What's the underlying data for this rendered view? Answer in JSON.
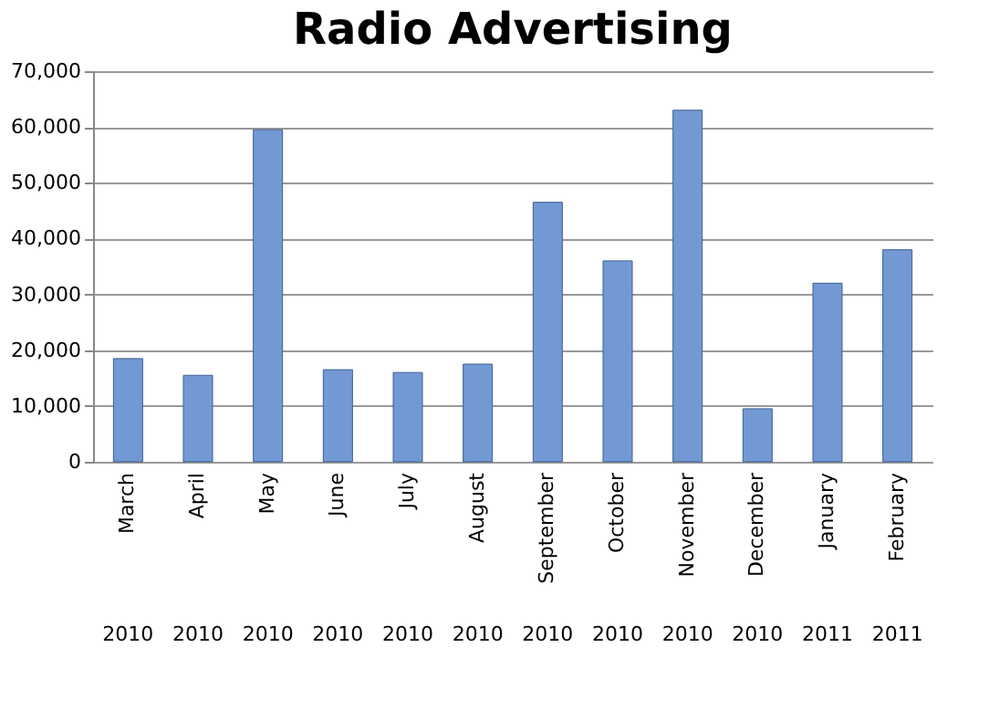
{
  "chart_data": {
    "type": "bar",
    "title": "Radio Advertising",
    "categories": [
      "March 2010",
      "April 2010",
      "May 2010",
      "June 2010",
      "July 2010",
      "August 2010",
      "September 2010",
      "October 2010",
      "November 2010",
      "December 2010",
      "January 2011",
      "February 2011"
    ],
    "values": [
      18500,
      15500,
      59500,
      16500,
      16000,
      17500,
      46500,
      36000,
      63000,
      9500,
      32000,
      38000
    ],
    "color": "#7399d4",
    "ylim": [
      0,
      70000
    ],
    "yticks": [
      {
        "value": 0,
        "label": "0"
      },
      {
        "value": 10000,
        "label": "10,000"
      },
      {
        "value": 20000,
        "label": "20,000"
      },
      {
        "value": 30000,
        "label": "30,000"
      },
      {
        "value": 40000,
        "label": "40,000"
      },
      {
        "value": 50000,
        "label": "50,000"
      },
      {
        "value": 60000,
        "label": "60,000"
      },
      {
        "value": 70000,
        "label": "70,000"
      }
    ],
    "grid": "y"
  }
}
